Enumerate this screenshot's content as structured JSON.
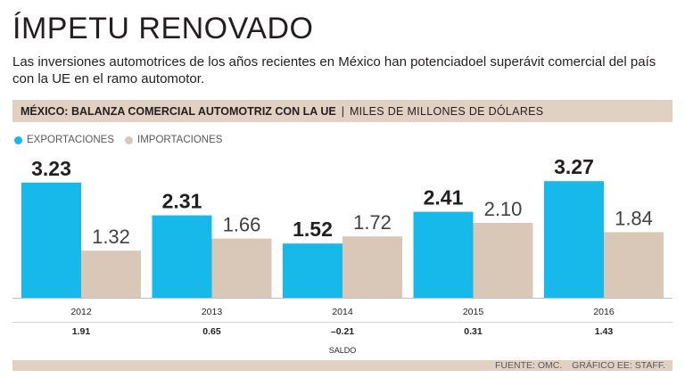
{
  "title": "ÍMPETU RENOVADO",
  "subtitle": "Las inversiones automotrices de los años recientes en México han potenciadoel superávit comercial del país con la UE en el ramo automotor.",
  "header": {
    "main": "MÉXICO: BALANZA COMERCIAL AUTOMOTRIZ CON LA UE",
    "separator": "|",
    "unit": "MILES DE MILLONES DE DÓLARES"
  },
  "colors": {
    "exports": "#17b9ea",
    "imports": "#d9c8b8",
    "band": "#e0d1c3",
    "text": "#231f20"
  },
  "footer": {
    "source": "FUENTE: OMC.",
    "credit": "GRÁFICO EE: STAFF."
  },
  "chart_data": {
    "type": "bar",
    "title": "MÉXICO: BALANZA COMERCIAL AUTOMOTRIZ CON LA UE",
    "ylabel": "MILES DE MILLONES DE DÓLARES",
    "xlabel": "",
    "ylim": [
      0,
      3.5
    ],
    "grid": false,
    "legend_position": "top-left",
    "categories": [
      "2012",
      "2013",
      "2014",
      "2015",
      "2016"
    ],
    "series": [
      {
        "name": "EXPORTACIONES",
        "values": [
          3.23,
          2.31,
          1.52,
          2.41,
          3.27
        ],
        "labels": [
          "3.23",
          "2.31",
          "1.52",
          "2.41",
          "3.27"
        ]
      },
      {
        "name": "IMPORTACIONES",
        "values": [
          1.32,
          1.66,
          1.72,
          2.1,
          1.84
        ],
        "labels": [
          "1.32",
          "1.66",
          "1.72",
          "2.10",
          "1.84"
        ]
      }
    ],
    "balance": {
      "label": "SALDO",
      "values": [
        1.91,
        0.65,
        -0.21,
        0.31,
        1.43
      ],
      "labels": [
        "1.91",
        "0.65",
        "–0.21",
        "0.31",
        "1.43"
      ]
    }
  }
}
